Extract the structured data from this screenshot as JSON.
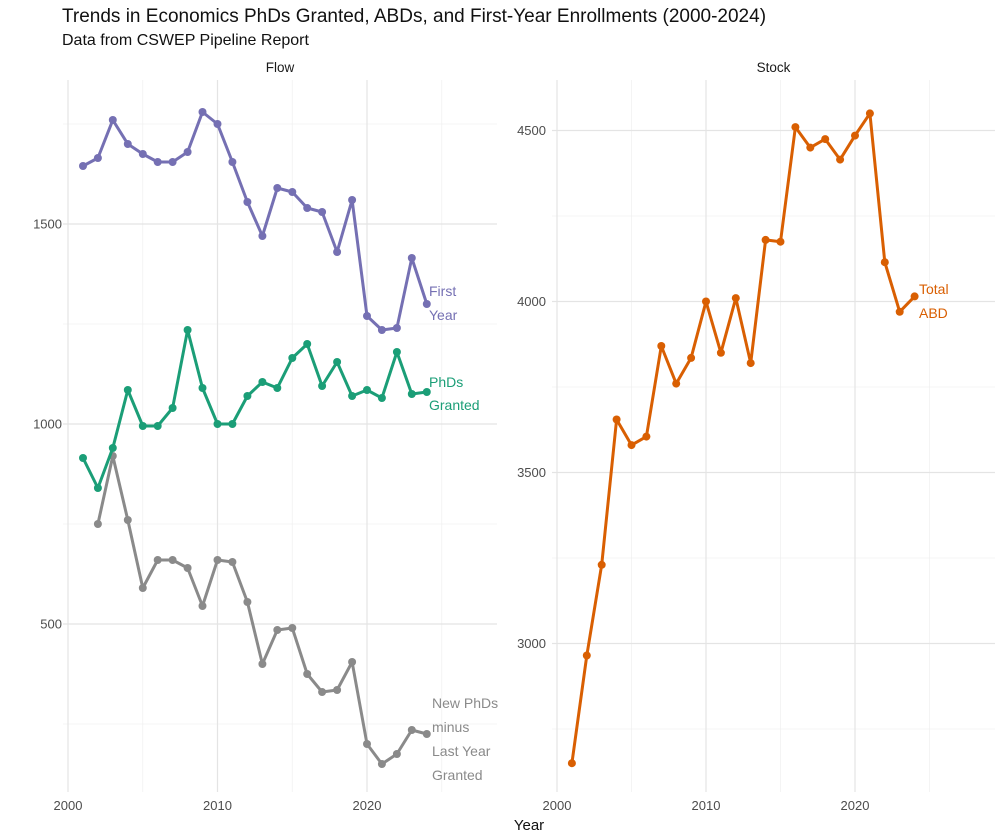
{
  "title": "Trends in Economics PhDs Granted, ABDs, and First-Year Enrollments (2000-2024)",
  "subtitle": "Data from CSWEP Pipeline Report",
  "x_axis_title": "Year",
  "facets": {
    "flow": "Flow",
    "stock": "Stock"
  },
  "colors": {
    "first_year": "#7570B3",
    "phds_granted": "#1B9E77",
    "new_phds_minus_last_year_granted": "#8A8A8A",
    "total_abd": "#D95F02",
    "grid_major": "#E4E4E4",
    "grid_minor": "#F1F1F1",
    "tick_label": "#4D4D4D"
  },
  "series_labels": {
    "first_year": "First\nYear",
    "phds_granted": "PhDs\nGranted",
    "new_phds_minus_last_year_granted": "New PhDs\nminus\nLast Year\nGranted",
    "total_abd": "Total\nABD"
  },
  "chart_data": [
    {
      "type": "line",
      "facet": "Flow",
      "panel": "flow",
      "xlabel": "Year",
      "grid": true,
      "xlim": [
        2000,
        2025
      ],
      "ylim": [
        80,
        1860
      ],
      "x_ticks": [
        2000,
        2010,
        2020
      ],
      "x_minor": [
        2005,
        2015,
        2025
      ],
      "y_ticks": [
        500,
        1000,
        1500
      ],
      "y_minor": [
        250,
        750,
        1250,
        1750
      ],
      "series": [
        {
          "name": "New PhDs minus Last Year Granted",
          "color_key": "new_phds_minus_last_year_granted",
          "x_start": 2002,
          "values": [
            750,
            920,
            760,
            590,
            660,
            660,
            640,
            545,
            660,
            655,
            555,
            400,
            485,
            490,
            375,
            330,
            335,
            405,
            200,
            150,
            175,
            235,
            225
          ]
        },
        {
          "name": "PhDs Granted",
          "color_key": "phds_granted",
          "x_start": 2001,
          "values": [
            915,
            840,
            940,
            1085,
            995,
            995,
            1040,
            1235,
            1090,
            1000,
            1000,
            1070,
            1105,
            1090,
            1165,
            1200,
            1095,
            1155,
            1070,
            1085,
            1065,
            1180,
            1075,
            1080
          ]
        },
        {
          "name": "First Year",
          "color_key": "first_year",
          "x_start": 2001,
          "values": [
            1645,
            1665,
            1760,
            1700,
            1675,
            1655,
            1655,
            1680,
            1780,
            1750,
            1655,
            1555,
            1470,
            1590,
            1580,
            1540,
            1530,
            1430,
            1560,
            1270,
            1235,
            1240,
            1415,
            1300
          ]
        }
      ]
    },
    {
      "type": "line",
      "facet": "Stock",
      "panel": "stock",
      "xlabel": "Year",
      "grid": true,
      "xlim": [
        2000,
        2025
      ],
      "ylim": [
        2560,
        4650
      ],
      "x_ticks": [
        2000,
        2010,
        2020
      ],
      "x_minor": [
        2005,
        2015,
        2025
      ],
      "y_ticks": [
        3000,
        3500,
        4000,
        4500
      ],
      "y_minor": [
        2750,
        3250,
        3750,
        4250
      ],
      "series": [
        {
          "name": "Total ABD",
          "color_key": "total_abd",
          "x_start": 2001,
          "values": [
            2650,
            2965,
            3230,
            3655,
            3580,
            3605,
            3870,
            3760,
            3835,
            4000,
            3850,
            4010,
            3820,
            4180,
            4175,
            4510,
            4450,
            4475,
            4415,
            4485,
            4550,
            4115,
            3970,
            4015
          ]
        }
      ]
    }
  ]
}
